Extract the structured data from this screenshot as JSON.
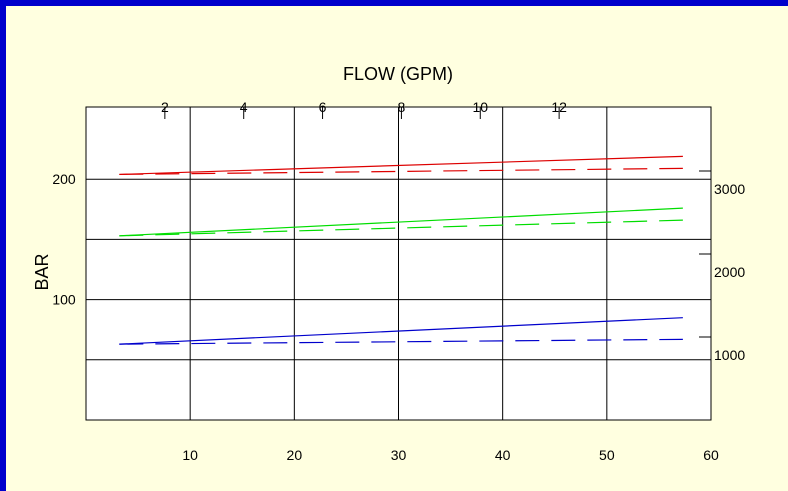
{
  "chart_data": {
    "type": "line",
    "title": "FLOW (GPM)",
    "ylabel": "BAR",
    "x": [
      3.2,
      57.3
    ],
    "xlim": [
      0,
      60
    ],
    "ylim": [
      0,
      260
    ],
    "x_ticks": [
      "10",
      "20",
      "30",
      "40",
      "50",
      "60"
    ],
    "top_ticks": [
      "2",
      "4",
      "6",
      "8",
      "10",
      "12"
    ],
    "left_ticks": [
      "200",
      "100"
    ],
    "right_ticks": [
      "3000",
      "2000",
      "1000"
    ],
    "series": [
      {
        "color": "#dd0000",
        "style": "solid",
        "values": [
          204,
          219
        ]
      },
      {
        "color": "#dd0000",
        "style": "dashed",
        "values": [
          204,
          209
        ]
      },
      {
        "color": "#00dd00",
        "style": "solid",
        "values": [
          153,
          176
        ]
      },
      {
        "color": "#00dd00",
        "style": "dashed",
        "values": [
          153,
          166
        ]
      },
      {
        "color": "#0000cc",
        "style": "solid",
        "values": [
          63,
          85
        ]
      },
      {
        "color": "#0000cc",
        "style": "dashed",
        "values": [
          63,
          67
        ]
      }
    ]
  }
}
